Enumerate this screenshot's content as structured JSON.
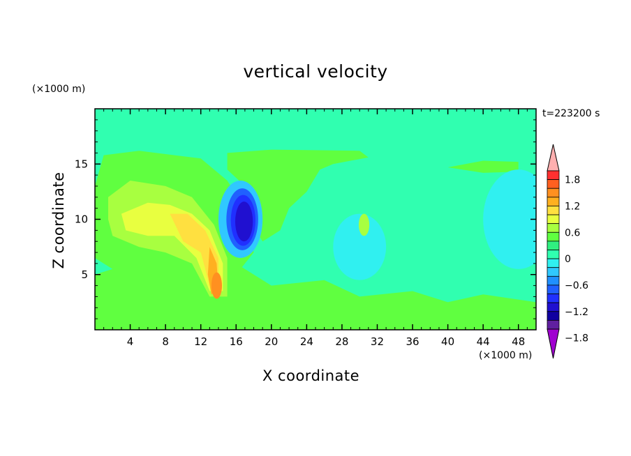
{
  "chart_data": {
    "type": "heatmap",
    "title": "vertical velocity",
    "xlabel": "X coordinate",
    "ylabel": "Z coordinate",
    "x_units": "(×1000 m)",
    "y_units": "(×1000 m)",
    "timestamp": "t=223200 s",
    "xlim": [
      0,
      50
    ],
    "ylim": [
      0,
      20
    ],
    "x_ticks": [
      "4",
      "8",
      "12",
      "16",
      "20",
      "24",
      "28",
      "32",
      "36",
      "40",
      "44",
      "48"
    ],
    "y_ticks": [
      "5",
      "10",
      "15"
    ],
    "background_value": 0,
    "colorbar": {
      "labels": [
        "1.8",
        "1.2",
        "0.6",
        "0",
        "−0.6",
        "−1.2",
        "−1.8"
      ],
      "colors": [
        "#ffb0b0",
        "#ff3030",
        "#ff6020",
        "#ff9020",
        "#ffb020",
        "#ffe040",
        "#e8ff40",
        "#a8ff40",
        "#60ff40",
        "#30f080",
        "#30ffb0",
        "#30f0f0",
        "#30c8ff",
        "#2090ff",
        "#2060ff",
        "#2030ff",
        "#2010d0",
        "#1000a0",
        "#6020a0",
        "#a000d0"
      ]
    },
    "features": [
      {
        "value": -1.5,
        "x": 16.5,
        "z": 10
      },
      {
        "value": -0.6,
        "x": 16.5,
        "z": 10
      },
      {
        "value": 0.3,
        "x": 25,
        "z": 15.5
      },
      {
        "value": 0.6,
        "x": 6,
        "z": 10
      },
      {
        "value": 1.0,
        "x": 11,
        "z": 9
      },
      {
        "value": 1.5,
        "x": 14,
        "z": 4
      },
      {
        "value": 0.6,
        "x": 30.5,
        "z": 9.5
      },
      {
        "value": -0.3,
        "x": 47,
        "z": 10
      }
    ]
  }
}
